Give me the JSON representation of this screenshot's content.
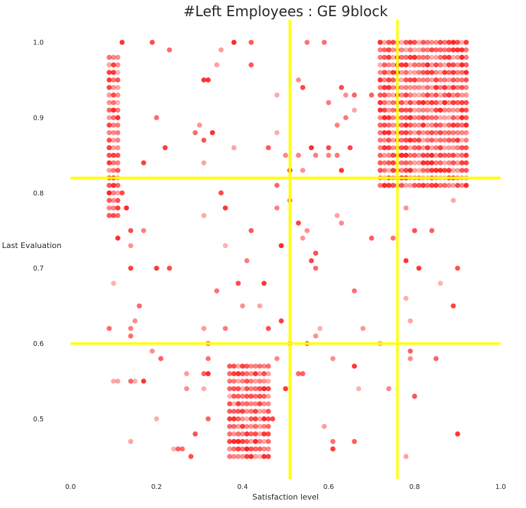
{
  "chart_data": {
    "type": "scatter",
    "title": "#Left Employees : GE 9block",
    "xlabel": "Satisfaction level",
    "ylabel": "Last Evaluation",
    "xlim": [
      0.0,
      1.0
    ],
    "ylim": [
      0.42,
      1.03
    ],
    "xticks": [
      "0.0",
      "0.2",
      "0.4",
      "0.6",
      "0.8",
      "1.0"
    ],
    "yticks": [
      "0.5",
      "0.6",
      "0.7",
      "0.8",
      "0.9",
      "1.0"
    ],
    "grid": false,
    "marker_color": "#ff0000",
    "divider_color": "#ffff00",
    "vertical_dividers": [
      0.51,
      0.76
    ],
    "horizontal_dividers": [
      0.82,
      0.6
    ],
    "clusters": [
      {
        "x_min": 0.09,
        "x_max": 0.11,
        "x_step": 0.01,
        "y_min": 0.77,
        "y_max": 0.98,
        "y_step": 0.01
      },
      {
        "x_min": 0.37,
        "x_max": 0.46,
        "x_step": 0.01,
        "y_min": 0.45,
        "y_max": 0.57,
        "y_step": 0.01
      },
      {
        "x_min": 0.72,
        "x_max": 0.92,
        "x_step": 0.01,
        "y_min": 0.81,
        "y_max": 1.0,
        "y_step": 0.01
      }
    ],
    "points": [
      [
        0.12,
        1.0
      ],
      [
        0.19,
        1.0
      ],
      [
        0.23,
        0.99
      ],
      [
        0.35,
        0.99
      ],
      [
        0.38,
        1.0
      ],
      [
        0.42,
        1.0
      ],
      [
        0.55,
        1.0
      ],
      [
        0.59,
        1.0
      ],
      [
        0.34,
        0.97
      ],
      [
        0.42,
        0.97
      ],
      [
        0.31,
        0.95
      ],
      [
        0.32,
        0.95
      ],
      [
        0.53,
        0.95
      ],
      [
        0.54,
        0.94
      ],
      [
        0.63,
        0.94
      ],
      [
        0.48,
        0.93
      ],
      [
        0.64,
        0.93
      ],
      [
        0.66,
        0.93
      ],
      [
        0.7,
        0.93
      ],
      [
        0.6,
        0.92
      ],
      [
        0.66,
        0.91
      ],
      [
        0.2,
        0.9
      ],
      [
        0.64,
        0.9
      ],
      [
        0.62,
        0.89
      ],
      [
        0.3,
        0.89
      ],
      [
        0.29,
        0.88
      ],
      [
        0.33,
        0.88
      ],
      [
        0.48,
        0.88
      ],
      [
        0.31,
        0.87
      ],
      [
        0.22,
        0.86
      ],
      [
        0.38,
        0.86
      ],
      [
        0.46,
        0.86
      ],
      [
        0.56,
        0.86
      ],
      [
        0.6,
        0.86
      ],
      [
        0.65,
        0.86
      ],
      [
        0.5,
        0.85
      ],
      [
        0.53,
        0.85
      ],
      [
        0.57,
        0.85
      ],
      [
        0.6,
        0.85
      ],
      [
        0.62,
        0.85
      ],
      [
        0.17,
        0.84
      ],
      [
        0.31,
        0.84
      ],
      [
        0.51,
        0.83
      ],
      [
        0.54,
        0.83
      ],
      [
        0.63,
        0.83
      ],
      [
        0.12,
        0.8
      ],
      [
        0.48,
        0.81
      ],
      [
        0.35,
        0.8
      ],
      [
        0.51,
        0.79
      ],
      [
        0.13,
        0.78
      ],
      [
        0.36,
        0.78
      ],
      [
        0.48,
        0.78
      ],
      [
        0.78,
        0.78
      ],
      [
        0.89,
        0.79
      ],
      [
        0.31,
        0.77
      ],
      [
        0.62,
        0.77
      ],
      [
        0.53,
        0.76
      ],
      [
        0.63,
        0.76
      ],
      [
        0.14,
        0.75
      ],
      [
        0.17,
        0.75
      ],
      [
        0.42,
        0.75
      ],
      [
        0.55,
        0.75
      ],
      [
        0.8,
        0.75
      ],
      [
        0.84,
        0.75
      ],
      [
        0.11,
        0.74
      ],
      [
        0.54,
        0.74
      ],
      [
        0.7,
        0.74
      ],
      [
        0.75,
        0.74
      ],
      [
        0.14,
        0.73
      ],
      [
        0.36,
        0.73
      ],
      [
        0.49,
        0.73
      ],
      [
        0.57,
        0.72
      ],
      [
        0.56,
        0.71
      ],
      [
        0.41,
        0.71
      ],
      [
        0.78,
        0.71
      ],
      [
        0.14,
        0.7
      ],
      [
        0.2,
        0.7
      ],
      [
        0.23,
        0.7
      ],
      [
        0.57,
        0.7
      ],
      [
        0.81,
        0.7
      ],
      [
        0.9,
        0.7
      ],
      [
        0.39,
        0.68
      ],
      [
        0.45,
        0.68
      ],
      [
        0.1,
        0.68
      ],
      [
        0.86,
        0.68
      ],
      [
        0.34,
        0.67
      ],
      [
        0.66,
        0.67
      ],
      [
        0.78,
        0.66
      ],
      [
        0.16,
        0.65
      ],
      [
        0.4,
        0.65
      ],
      [
        0.44,
        0.65
      ],
      [
        0.89,
        0.65
      ],
      [
        0.15,
        0.63
      ],
      [
        0.49,
        0.63
      ],
      [
        0.79,
        0.63
      ],
      [
        0.09,
        0.62
      ],
      [
        0.14,
        0.62
      ],
      [
        0.31,
        0.62
      ],
      [
        0.36,
        0.62
      ],
      [
        0.46,
        0.62
      ],
      [
        0.58,
        0.62
      ],
      [
        0.68,
        0.62
      ],
      [
        0.14,
        0.61
      ],
      [
        0.57,
        0.61
      ],
      [
        0.32,
        0.6
      ],
      [
        0.51,
        0.6
      ],
      [
        0.55,
        0.6
      ],
      [
        0.72,
        0.6
      ],
      [
        0.19,
        0.59
      ],
      [
        0.79,
        0.59
      ],
      [
        0.21,
        0.58
      ],
      [
        0.32,
        0.58
      ],
      [
        0.48,
        0.58
      ],
      [
        0.61,
        0.58
      ],
      [
        0.79,
        0.58
      ],
      [
        0.85,
        0.58
      ],
      [
        0.66,
        0.57
      ],
      [
        0.27,
        0.56
      ],
      [
        0.31,
        0.56
      ],
      [
        0.32,
        0.56
      ],
      [
        0.53,
        0.56
      ],
      [
        0.54,
        0.56
      ],
      [
        0.11,
        0.55
      ],
      [
        0.14,
        0.55
      ],
      [
        0.15,
        0.55
      ],
      [
        0.17,
        0.55
      ],
      [
        0.1,
        0.55
      ],
      [
        0.27,
        0.54
      ],
      [
        0.31,
        0.54
      ],
      [
        0.5,
        0.54
      ],
      [
        0.67,
        0.54
      ],
      [
        0.74,
        0.54
      ],
      [
        0.8,
        0.53
      ],
      [
        0.2,
        0.5
      ],
      [
        0.32,
        0.5
      ],
      [
        0.47,
        0.5
      ],
      [
        0.59,
        0.49
      ],
      [
        0.29,
        0.48
      ],
      [
        0.9,
        0.48
      ],
      [
        0.14,
        0.47
      ],
      [
        0.61,
        0.47
      ],
      [
        0.66,
        0.47
      ],
      [
        0.24,
        0.46
      ],
      [
        0.25,
        0.46
      ],
      [
        0.26,
        0.46
      ],
      [
        0.61,
        0.46
      ],
      [
        0.28,
        0.45
      ],
      [
        0.78,
        0.45
      ]
    ]
  }
}
